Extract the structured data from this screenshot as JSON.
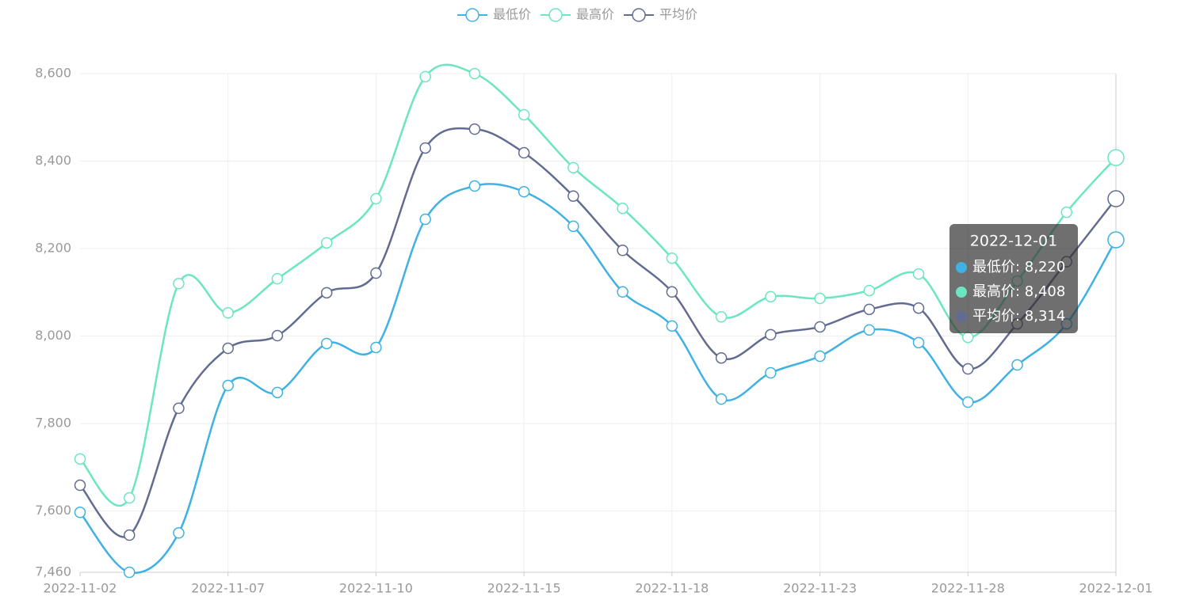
{
  "chart_data": {
    "type": "line",
    "categories": [
      "2022-11-02",
      null,
      null,
      "2022-11-07",
      null,
      null,
      "2022-11-10",
      null,
      null,
      "2022-11-15",
      null,
      null,
      "2022-11-18",
      null,
      null,
      "2022-11-23",
      null,
      null,
      "2022-11-28",
      null,
      null,
      "2022-12-01"
    ],
    "series": [
      {
        "name": "最低价",
        "color": "#3fb1e3",
        "values": [
          7597,
          7460,
          7550,
          7887,
          7871,
          7983,
          7974,
          8267,
          8343,
          8330,
          8251,
          8101,
          8023,
          7856,
          7916,
          7954,
          8014,
          7985,
          7849,
          7934,
          8028,
          8220
        ]
      },
      {
        "name": "最高价",
        "color": "#6be6c1",
        "values": [
          7719,
          7630,
          8120,
          8053,
          8131,
          8213,
          8314,
          8593,
          8600,
          8506,
          8385,
          8292,
          8178,
          8044,
          8090,
          8086,
          8104,
          8142,
          7997,
          8126,
          8283,
          8408
        ]
      },
      {
        "name": "平均价",
        "color": "#626c91",
        "values": [
          7659,
          7545,
          7835,
          7972,
          8001,
          8099,
          8144,
          8430,
          8473,
          8419,
          8320,
          8196,
          8101,
          7950,
          8003,
          8021,
          8061,
          8064,
          7925,
          8028,
          8170,
          8314
        ]
      }
    ],
    "ylim": [
      7460,
      8600
    ],
    "yticks": [
      {
        "value": 7460,
        "label": "7,460"
      },
      {
        "value": 7600,
        "label": "7,600"
      },
      {
        "value": 7800,
        "label": "7,800"
      },
      {
        "value": 8000,
        "label": "8,000"
      },
      {
        "value": 8200,
        "label": "8,200"
      },
      {
        "value": 8400,
        "label": "8,400"
      },
      {
        "value": 8600,
        "label": "8,600"
      }
    ],
    "grid": true,
    "legend": "top",
    "tooltip": {
      "title": "2022-12-01",
      "items": [
        "最低价: 8,220",
        "最高价: 8,408",
        "平均价: 8,314"
      ]
    }
  }
}
